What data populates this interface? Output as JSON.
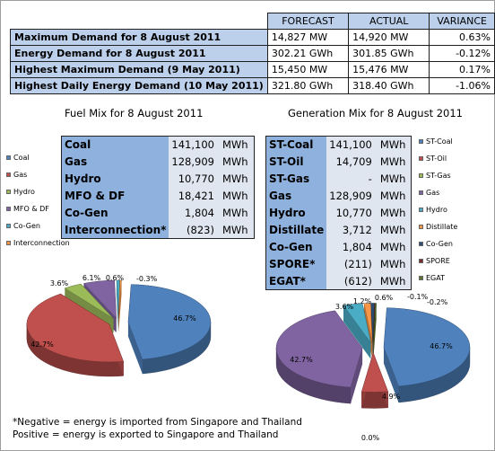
{
  "summary": {
    "headers": [
      "FORECAST",
      "ACTUAL",
      "VARIANCE"
    ],
    "rows": [
      {
        "label": "Maximum Demand for 8 August 2011",
        "forecast": "14,827  MW",
        "actual": "14,920  MW",
        "variance": "0.63%"
      },
      {
        "label": "Energy Demand for 8 August 2011",
        "forecast": "302.21  GWh",
        "actual": "301.85  GWh",
        "variance": "-0.12%"
      },
      {
        "label": "Highest Maximum Demand (9 May 2011)",
        "forecast": "15,450  MW",
        "actual": "15,476  MW",
        "variance": "0.17%"
      },
      {
        "label": "Highest Daily Energy Demand (10 May 2011)",
        "forecast": "321.80  GWh",
        "actual": "318.40  GWh",
        "variance": "-1.06%"
      }
    ]
  },
  "chart_data": [
    {
      "type": "pie",
      "title": "Fuel Mix for 8 August 2011",
      "unit": "MWh",
      "table": [
        {
          "name": "Coal",
          "value": "141,100",
          "unit": "MWh"
        },
        {
          "name": "Gas",
          "value": "128,909",
          "unit": "MWh"
        },
        {
          "name": "Hydro",
          "value": "10,770",
          "unit": "MWh"
        },
        {
          "name": "MFO & DF",
          "value": "18,421",
          "unit": "MWh"
        },
        {
          "name": "Co-Gen",
          "value": "1,804",
          "unit": "MWh"
        },
        {
          "name": "Interconnection*",
          "value": "(823)",
          "unit": "MWh"
        }
      ],
      "legend": [
        "Coal",
        "Gas",
        "Hydro",
        "MFO & DF",
        "Co-Gen",
        "Interconnection"
      ],
      "slices": [
        {
          "label": "Coal",
          "percent": 46.7,
          "color": "#4f81bd",
          "data_label": "46.7%"
        },
        {
          "label": "Gas",
          "percent": 42.7,
          "color": "#c0504d",
          "data_label": "42.7%"
        },
        {
          "label": "Hydro",
          "percent": 3.6,
          "color": "#9bbb59",
          "data_label": "3.6%"
        },
        {
          "label": "MFO & DF",
          "percent": 6.1,
          "color": "#8064a2",
          "data_label": "6.1%"
        },
        {
          "label": "Co-Gen",
          "percent": 0.6,
          "color": "#4bacc6",
          "data_label": "0.6%"
        },
        {
          "label": "Interconnection",
          "percent": 0.3,
          "color": "#f79646",
          "data_label": "-0.3%"
        }
      ]
    },
    {
      "type": "pie",
      "title": "Generation Mix for 8 August 2011",
      "unit": "MWh",
      "table": [
        {
          "name": "ST-Coal",
          "value": "141,100",
          "unit": "MWh"
        },
        {
          "name": "ST-Oil",
          "value": "14,709",
          "unit": "MWh"
        },
        {
          "name": "ST-Gas",
          "value": "-",
          "unit": "MWh"
        },
        {
          "name": "Gas",
          "value": "128,909",
          "unit": "MWh"
        },
        {
          "name": "Hydro",
          "value": "10,770",
          "unit": "MWh"
        },
        {
          "name": "Distillate",
          "value": "3,712",
          "unit": "MWh"
        },
        {
          "name": "Co-Gen",
          "value": "1,804",
          "unit": "MWh"
        },
        {
          "name": "SPORE*",
          "value": "(211)",
          "unit": "MWh"
        },
        {
          "name": "EGAT*",
          "value": "(612)",
          "unit": "MWh"
        }
      ],
      "legend": [
        "ST-Coal",
        "ST-Oil",
        "ST-Gas",
        "Gas",
        "Hydro",
        "Distillate",
        "Co-Gen",
        "SPORE",
        "EGAT"
      ],
      "slices": [
        {
          "label": "ST-Coal",
          "percent": 46.7,
          "color": "#4f81bd",
          "data_label": "46.7%"
        },
        {
          "label": "ST-Oil",
          "percent": 4.9,
          "color": "#c0504d",
          "data_label": "4.9%"
        },
        {
          "label": "ST-Gas",
          "percent": 0.0,
          "color": "#9bbb59",
          "data_label": "0.0%"
        },
        {
          "label": "Gas",
          "percent": 42.7,
          "color": "#8064a2",
          "data_label": "42.7%"
        },
        {
          "label": "Hydro",
          "percent": 3.6,
          "color": "#4bacc6",
          "data_label": "3.6%"
        },
        {
          "label": "Distillate",
          "percent": 1.2,
          "color": "#f79646",
          "data_label": "1.2%"
        },
        {
          "label": "Co-Gen",
          "percent": 0.6,
          "color": "#2c4d75",
          "data_label": "0.6%"
        },
        {
          "label": "SPORE",
          "percent": 0.1,
          "color": "#772c2a",
          "data_label": "-0.1%"
        },
        {
          "label": "EGAT",
          "percent": 0.2,
          "color": "#5f7530",
          "data_label": "-0.2%"
        }
      ]
    }
  ],
  "footnote": {
    "line1": "*Negative = energy is imported from Singapore and Thailand",
    "line2": "Positive = energy is exported to Singapore and Thailand"
  }
}
